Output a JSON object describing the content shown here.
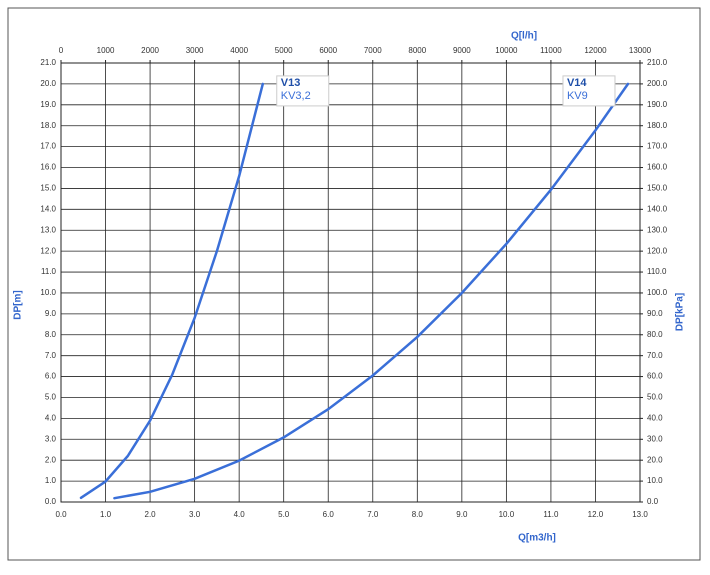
{
  "chart_data": {
    "type": "line",
    "x_label": "Q[m3/h]",
    "x2_label": "Q[l/h]",
    "y_label": "DP[m]",
    "y2_label": "DP[kPa]",
    "xlim": [
      0,
      13
    ],
    "ylim": [
      0,
      21
    ],
    "x2lim": [
      0,
      13000
    ],
    "y2lim": [
      0,
      210
    ],
    "grid": true,
    "xticks": [
      {
        "value": 0,
        "label": "0.0"
      },
      {
        "value": 1,
        "label": "1.0"
      },
      {
        "value": 2,
        "label": "2.0"
      },
      {
        "value": 3,
        "label": "3.0"
      },
      {
        "value": 4,
        "label": "4.0"
      },
      {
        "value": 5,
        "label": "5.0"
      },
      {
        "value": 6,
        "label": "6.0"
      },
      {
        "value": 7,
        "label": "7.0"
      },
      {
        "value": 8,
        "label": "8.0"
      },
      {
        "value": 9,
        "label": "9.0"
      },
      {
        "value": 10,
        "label": "10.0"
      },
      {
        "value": 11,
        "label": "11.0"
      },
      {
        "value": 12,
        "label": "12.0"
      },
      {
        "value": 13,
        "label": "13.0"
      }
    ],
    "x2ticks": [
      0,
      1000,
      2000,
      3000,
      4000,
      5000,
      6000,
      7000,
      8000,
      9000,
      10000,
      11000,
      12000,
      13000
    ],
    "yticks": [
      {
        "value": 0,
        "label": "0.0"
      },
      {
        "value": 1,
        "label": "1.0"
      },
      {
        "value": 2,
        "label": "2.0"
      },
      {
        "value": 3,
        "label": "3.0"
      },
      {
        "value": 4,
        "label": "4.0"
      },
      {
        "value": 5,
        "label": "5.0"
      },
      {
        "value": 6,
        "label": "6.0"
      },
      {
        "value": 7,
        "label": "7.0"
      },
      {
        "value": 8,
        "label": "8.0"
      },
      {
        "value": 9,
        "label": "9.0"
      },
      {
        "value": 10,
        "label": "10.0"
      },
      {
        "value": 11,
        "label": "11.0"
      },
      {
        "value": 12,
        "label": "12.0"
      },
      {
        "value": 13,
        "label": "13.0"
      },
      {
        "value": 14,
        "label": "14.0"
      },
      {
        "value": 15,
        "label": "15.0"
      },
      {
        "value": 16,
        "label": "16.0"
      },
      {
        "value": 17,
        "label": "17.0"
      },
      {
        "value": 18,
        "label": "18.0"
      },
      {
        "value": 19,
        "label": "19.0"
      },
      {
        "value": 20,
        "label": "20.0"
      },
      {
        "value": 21,
        "label": "21.0"
      }
    ],
    "y2ticks": [
      {
        "value": 0,
        "label": "0.0"
      },
      {
        "value": 10,
        "label": "10.0"
      },
      {
        "value": 20,
        "label": "20.0"
      },
      {
        "value": 30,
        "label": "30.0"
      },
      {
        "value": 40,
        "label": "40.0"
      },
      {
        "value": 50,
        "label": "50.0"
      },
      {
        "value": 60,
        "label": "60.0"
      },
      {
        "value": 70,
        "label": "70.0"
      },
      {
        "value": 80,
        "label": "80.0"
      },
      {
        "value": 90,
        "label": "90.0"
      },
      {
        "value": 100,
        "label": "100.0"
      },
      {
        "value": 110,
        "label": "110.0"
      },
      {
        "value": 120,
        "label": "120.0"
      },
      {
        "value": 130,
        "label": "130.0"
      },
      {
        "value": 140,
        "label": "140.0"
      },
      {
        "value": 150,
        "label": "150.0"
      },
      {
        "value": 160,
        "label": "160.0"
      },
      {
        "value": 170,
        "label": "170.0"
      },
      {
        "value": 180,
        "label": "180.0"
      },
      {
        "value": 190,
        "label": "190.0"
      },
      {
        "value": 200,
        "label": "200.0"
      },
      {
        "value": 210,
        "label": "210.0"
      }
    ],
    "series": [
      {
        "name": "V13",
        "kv": "KV3,2",
        "color": "#3a6fd8",
        "x": [
          0.45,
          1,
          1.5,
          2,
          2.5,
          3,
          3.5,
          4,
          4.53
        ],
        "values": [
          0.2,
          0.98,
          2.2,
          3.9,
          6.1,
          8.8,
          12.0,
          15.6,
          20.0
        ]
      },
      {
        "name": "V14",
        "kv": "KV9",
        "color": "#3a6fd8",
        "x": [
          1.2,
          2,
          3,
          4,
          5,
          6,
          7,
          8,
          9,
          10,
          11,
          12,
          12.73
        ],
        "values": [
          0.18,
          0.49,
          1.11,
          1.98,
          3.09,
          4.44,
          6.05,
          7.9,
          10.0,
          12.35,
          14.94,
          17.78,
          20.0
        ]
      }
    ]
  }
}
